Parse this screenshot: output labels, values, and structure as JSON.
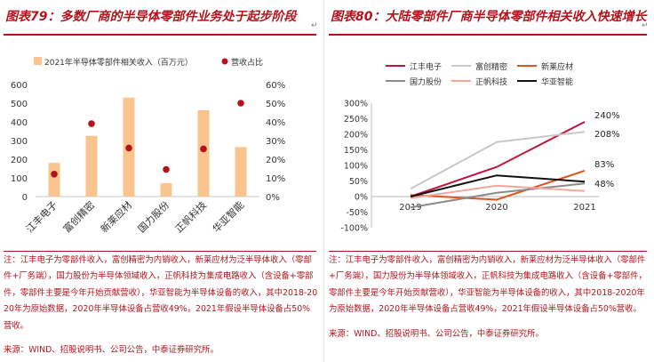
{
  "left": {
    "title": "图表79：多数厂商的半导体零部件业务处于起步阶段",
    "note": "注：江丰电子为零部件收入，富创精密为内销收入，新莱应材为泛半导体收入（零部件+厂务端），国力股份为半导体领域收入，正帆科技为集成电路收入（含设备+零部件，零部件主要是今年开始贡献营收），华亚智能为半导体设备的收入，其中2018-2020年为原始数据，2020年半导体设备占营收49%，2021年假设半导体设备占50%营收。",
    "source": "来源：WIND、招股说明书、公司公告，中泰证券研究所。"
  },
  "right": {
    "title": "图表80：大陆零部件厂商半导体零部件相关收入快速增长",
    "note": "注：江丰电子为零部件收入，富创精密为内销收入，新莱应材为泛半导体收入（零部件+厂务端），国力股份为半导体领域收入，正帆科技为集成电路收入（含设备+零部件，零部件主要是今年开始贡献营收），华亚智能为半导体设备的收入，其中2018-2020年为原始数据，2020年半导体设备占营收49%，2021年假设半导体设备占50%营收。",
    "source": "来源：WIND、招股说明书、公司公告，中泰证券研究所。"
  },
  "chart_data": [
    {
      "type": "bar",
      "title": "图表79：多数厂商的半导体零部件业务处于起步阶段",
      "categories": [
        "江丰电子",
        "富创精密",
        "新莱应材",
        "国力股份",
        "正帆科技",
        "华亚智能"
      ],
      "series": [
        {
          "name": "2021年半导体零部件相关收入（百万元）",
          "kind": "bar",
          "axis": "left",
          "color": "#f9c48e",
          "values": [
            180,
            325,
            530,
            72,
            462,
            265
          ]
        },
        {
          "name": "营收占比",
          "kind": "scatter",
          "axis": "right",
          "color": "#b3141c",
          "values": [
            0.12,
            0.39,
            0.26,
            0.145,
            0.255,
            0.5
          ]
        }
      ],
      "ylim": [
        0,
        600
      ],
      "yticks": [
        "0",
        "100",
        "200",
        "300",
        "400",
        "500",
        "600"
      ],
      "y2lim": [
        0,
        0.6
      ],
      "y2ticks": [
        "0%",
        "10%",
        "20%",
        "30%",
        "40%",
        "50%",
        "60%"
      ],
      "legend": "top"
    },
    {
      "type": "line",
      "title": "图表80：大陆零部件厂商半导体零部件相关收入快速增长",
      "x": [
        "2019",
        "2020",
        "2021"
      ],
      "series": [
        {
          "name": "江丰电子",
          "color": "#c0143c",
          "values": [
            0,
            0.95,
            2.4
          ]
        },
        {
          "name": "富创精密",
          "color": "#c8c8c8",
          "values": [
            0.25,
            1.75,
            2.08
          ]
        },
        {
          "name": "新莱应材",
          "color": "#e0531e",
          "values": [
            0.05,
            -0.1,
            0.83
          ]
        },
        {
          "name": "国力股份",
          "color": "#8a8a8a",
          "values": [
            -0.35,
            0.12,
            0.42
          ]
        },
        {
          "name": "正帆科技",
          "color": "#f3a79a",
          "values": [
            -0.05,
            0.35,
            0.18
          ]
        },
        {
          "name": "华亚智能",
          "color": "#111111",
          "values": [
            0.0,
            0.68,
            0.48
          ]
        }
      ],
      "labels": [
        {
          "series": "江丰电子",
          "text": "240%"
        },
        {
          "series": "富创精密",
          "text": "208%"
        },
        {
          "series": "新莱应材",
          "text": "83%"
        },
        {
          "series": "华亚智能",
          "text": "48%"
        }
      ],
      "ylim": [
        -1.0,
        3.0
      ],
      "yticks": [
        "-100%",
        "-50%",
        "0%",
        "50%",
        "100%",
        "150%",
        "200%",
        "250%",
        "300%"
      ],
      "legend": "top"
    }
  ]
}
